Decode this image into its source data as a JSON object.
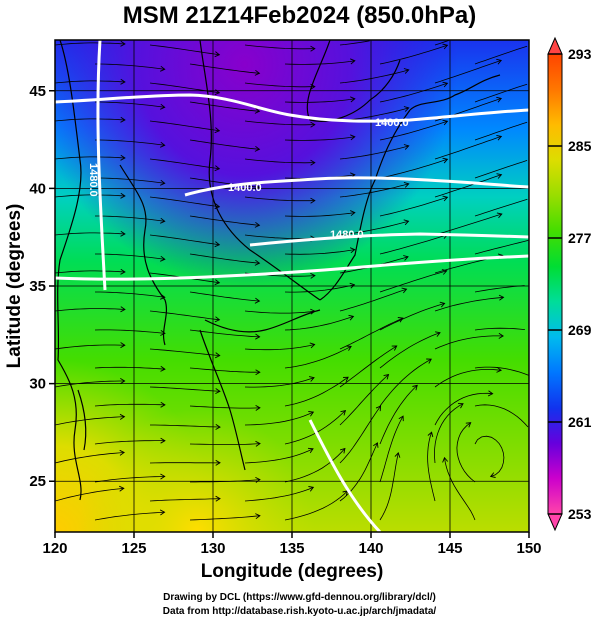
{
  "title": "MSM 21Z14Feb2024 (850.0hPa)",
  "x_axis": {
    "label": "Longitude (degrees)",
    "range": [
      120,
      150
    ],
    "ticks": [
      "120",
      "125",
      "130",
      "135",
      "140",
      "145",
      "150"
    ]
  },
  "y_axis": {
    "label": "Latitude  (degrees)",
    "range": [
      22.4,
      47.6
    ],
    "ticks": [
      "25",
      "30",
      "35",
      "40",
      "45"
    ]
  },
  "colorbar": {
    "range": [
      253,
      293
    ],
    "tick_labels": [
      "293",
      "285",
      "277",
      "269",
      "261",
      "253"
    ],
    "colors": [
      "#ff44aa",
      "#cc00cc",
      "#6600dd",
      "#1133ee",
      "#0077ff",
      "#00bbee",
      "#00dd99",
      "#00dd33",
      "#44dd00",
      "#99dd00",
      "#dddd00",
      "#ffbb00",
      "#ff7700",
      "#ff4400"
    ],
    "extend": "both"
  },
  "contours": {
    "color": "#ffffff",
    "labels": [
      "1400.0",
      "1400.0",
      "1480.0",
      "1480.0"
    ]
  },
  "vector_field": "streamlines",
  "footer": {
    "line1": "Drawing by DCL (https://www.gfd-dennou.org/library/dcl/)",
    "line2": "Data from http://database.rish.kyoto-u.ac.jp/arch/jmadata/"
  }
}
